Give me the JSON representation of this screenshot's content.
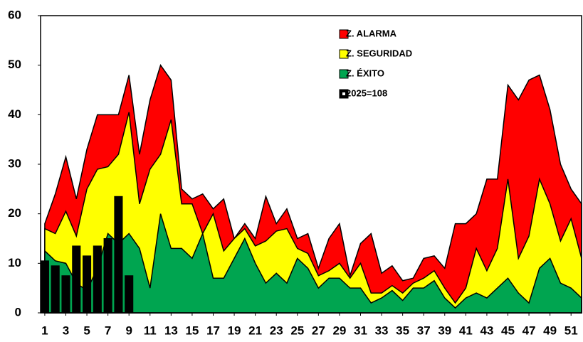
{
  "chart_data": {
    "type": "area",
    "x": [
      1,
      2,
      3,
      4,
      5,
      6,
      7,
      8,
      9,
      10,
      11,
      12,
      13,
      14,
      15,
      16,
      17,
      18,
      19,
      20,
      21,
      22,
      23,
      24,
      25,
      26,
      27,
      28,
      29,
      30,
      31,
      32,
      33,
      34,
      35,
      36,
      37,
      38,
      39,
      40,
      41,
      42,
      43,
      44,
      45,
      46,
      47,
      48,
      49,
      50,
      51,
      52
    ],
    "xlim": [
      0.6,
      52
    ],
    "xticks": [
      1,
      3,
      5,
      7,
      9,
      11,
      13,
      15,
      17,
      19,
      21,
      23,
      25,
      27,
      29,
      31,
      33,
      35,
      37,
      39,
      41,
      43,
      45,
      47,
      49,
      51
    ],
    "ylim": [
      0,
      60
    ],
    "yticks": [
      0,
      10,
      20,
      30,
      40,
      50,
      60
    ],
    "legend": "upper right",
    "series": [
      {
        "name": "Z. ALARMA",
        "color": "#ff0000",
        "type": "area",
        "values": [
          18,
          24,
          31.5,
          23,
          33,
          40,
          40,
          40,
          48,
          32,
          43,
          50,
          47,
          25,
          23,
          24,
          21,
          23,
          15,
          18,
          15,
          23.5,
          18,
          21,
          15,
          16,
          9,
          15,
          18,
          7.5,
          14,
          16,
          8,
          9.5,
          6.5,
          7,
          11,
          11.5,
          9,
          18,
          18,
          20,
          27,
          27,
          46,
          43,
          47,
          48,
          41,
          30,
          25,
          22
        ]
      },
      {
        "name": "Z. SEGURIDAD",
        "color": "#ffff00",
        "type": "area",
        "values": [
          17,
          16,
          20.5,
          15.5,
          25,
          29,
          29.5,
          32,
          40.5,
          22,
          29,
          32,
          39,
          22,
          22,
          16,
          20,
          12.5,
          15,
          17,
          13.5,
          14.5,
          16.5,
          17,
          13,
          12,
          7.5,
          8.5,
          10,
          7,
          10,
          4,
          4,
          5.5,
          4,
          6,
          7,
          8.5,
          5,
          2,
          5,
          13,
          8.5,
          13,
          27,
          11,
          15.5,
          27,
          22,
          14.5,
          19,
          11
        ]
      },
      {
        "name": "Z. ÉXITO",
        "color": "#00a550",
        "type": "area",
        "values": [
          12.5,
          10.5,
          10,
          6,
          4.5,
          9,
          16,
          14,
          16,
          13,
          5,
          20,
          13,
          13,
          11,
          16,
          7,
          7,
          11,
          15,
          10,
          6,
          8,
          6,
          11,
          9,
          5,
          7,
          7,
          5,
          5,
          2,
          3,
          4.5,
          2.5,
          5,
          5,
          6.5,
          3,
          1,
          3,
          4,
          3,
          5,
          7,
          4,
          2,
          9,
          11,
          6,
          5,
          3
        ]
      },
      {
        "name": "2025=108",
        "color": "#000000",
        "type": "bar",
        "values": [
          10.5,
          9.5,
          7.5,
          13.5,
          11.5,
          13.5,
          15,
          23.5,
          7.5,
          null,
          null,
          null,
          null,
          null,
          null,
          null,
          null,
          null,
          null,
          null,
          null,
          null,
          null,
          null,
          null,
          null,
          null,
          null,
          null,
          null,
          null,
          null,
          null,
          null,
          null,
          null,
          null,
          null,
          null,
          null,
          null,
          null,
          null,
          null,
          null,
          null,
          null,
          null,
          null,
          null,
          null,
          null
        ]
      }
    ]
  }
}
